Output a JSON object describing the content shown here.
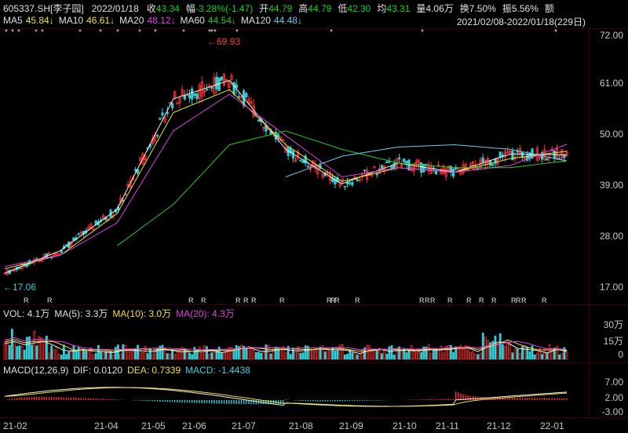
{
  "header": {
    "code": "605337.SH[李子园]",
    "date": "2022/01/18",
    "close_label": "收",
    "close": "43.34",
    "change_label": "幅",
    "change": "-3.28%(-1.47)",
    "open_label": "开",
    "open": "44.79",
    "high_label": "高",
    "high": "44.79",
    "low_label": "低",
    "low": "42.30",
    "avg_label": "均",
    "avg": "43.31",
    "vol_label": "量",
    "vol": "4.06万",
    "turnover_label": "换",
    "turnover": "7.50%",
    "amplitude_label": "振",
    "amplitude": "5.56%",
    "amount_label": "额"
  },
  "ma_line": {
    "ma5_label": "MA5",
    "ma5": "45.84↓",
    "ma10_label": "MA10",
    "ma10": "46.61↓",
    "ma20_label": "MA20",
    "ma20": "48.12↓",
    "ma60_label": "MA60",
    "ma60": "44.54↓",
    "ma120_label": "MA120",
    "ma120": "44.48↓",
    "range": "2021/02/08-2022/01/18(229日)"
  },
  "price_panel": {
    "max_label": "←69.93",
    "min_label": "←17.06",
    "r_marker": "R",
    "star_marker": "*"
  },
  "vol_line": {
    "vol": "VOL: 4.1万",
    "ma5": "MA(5): 3.3万",
    "ma10": "MA(10): 3.0万",
    "ma20": "MA(20): 4.3万"
  },
  "macd_line": {
    "title": "MACD(12,26,9)",
    "dif": "DIF: 0.0120",
    "dea": "DEA: 0.7339",
    "macd": "MACD: -1.4438"
  },
  "colors": {
    "up": "#ff3030",
    "down": "#30d0d8",
    "ma5": "#f0f0f0",
    "ma10": "#f0e040",
    "ma20": "#e040e0",
    "ma60": "#28c828",
    "ma120": "#78c8e8"
  },
  "chart_data": [
    {
      "type": "line",
      "title": "605337.SH[李子园]",
      "ylim": [
        17.06,
        72.0
      ],
      "x": [
        "21-02",
        "21-04",
        "21-05",
        "21-06",
        "21-07",
        "21-08",
        "21-09",
        "21-10",
        "21-11",
        "21-12",
        "22-01"
      ],
      "series": [
        {
          "name": "MA5",
          "values": [
            20.0,
            25.0,
            34.0,
            58.0,
            62.0,
            47.0,
            39.5,
            44.0,
            42.0,
            46.0,
            45.8
          ]
        },
        {
          "name": "MA10",
          "values": [
            21.0,
            24.0,
            33.0,
            55.0,
            60.0,
            48.0,
            40.0,
            43.0,
            42.0,
            45.0,
            46.6
          ]
        },
        {
          "name": "MA20",
          "values": [
            21.5,
            24.0,
            31.0,
            51.0,
            59.0,
            50.0,
            41.0,
            43.0,
            42.0,
            43.5,
            48.1
          ]
        },
        {
          "name": "MA60",
          "values": [
            null,
            null,
            26.0,
            35.0,
            48.0,
            51.0,
            47.0,
            44.0,
            43.0,
            43.0,
            44.5
          ]
        },
        {
          "name": "MA120",
          "values": [
            null,
            null,
            null,
            null,
            null,
            41.0,
            45.5,
            47.5,
            48.0,
            47.0,
            44.5
          ]
        }
      ],
      "yticks": [
        "72.00",
        "61.00",
        "50.00",
        "39.00",
        "28.00",
        "17.00"
      ]
    },
    {
      "type": "bar",
      "title": "VOL",
      "yticks": [
        "30万",
        "15万",
        "0"
      ]
    },
    {
      "type": "bar",
      "title": "MACD(12,26,9)",
      "yticks": [
        "7.00",
        "2.00",
        "-3.00"
      ]
    }
  ],
  "x_axis": [
    "21-02",
    "21-04",
    "21-05",
    "21-06",
    "21-07",
    "21-08",
    "21-09",
    "21-10",
    "21-11",
    "21-12",
    "22-01"
  ],
  "price_axis": [
    "72.00",
    "61.00",
    "50.00",
    "39.00",
    "28.00",
    "17.00"
  ],
  "vol_axis": [
    "30万",
    "15万",
    "0"
  ],
  "macd_axis": [
    "7.00",
    "2.00",
    "-3.00"
  ]
}
